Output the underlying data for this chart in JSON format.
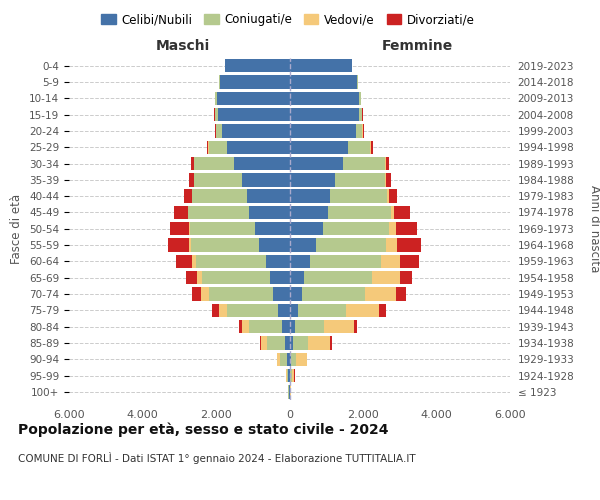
{
  "age_groups": [
    "100+",
    "95-99",
    "90-94",
    "85-89",
    "80-84",
    "75-79",
    "70-74",
    "65-69",
    "60-64",
    "55-59",
    "50-54",
    "45-49",
    "40-44",
    "35-39",
    "30-34",
    "25-29",
    "20-24",
    "15-19",
    "10-14",
    "5-9",
    "0-4"
  ],
  "birth_years": [
    "≤ 1923",
    "1924-1928",
    "1929-1933",
    "1934-1938",
    "1939-1943",
    "1944-1948",
    "1949-1953",
    "1954-1958",
    "1959-1963",
    "1964-1968",
    "1969-1973",
    "1974-1978",
    "1979-1983",
    "1984-1988",
    "1989-1993",
    "1994-1998",
    "1999-2003",
    "2004-2008",
    "2009-2013",
    "2014-2018",
    "2019-2023"
  ],
  "maschi": {
    "celibi": [
      20,
      30,
      60,
      120,
      200,
      300,
      450,
      520,
      650,
      820,
      950,
      1100,
      1150,
      1300,
      1500,
      1700,
      1850,
      1950,
      1980,
      1900,
      1750
    ],
    "coniugati": [
      10,
      50,
      200,
      500,
      900,
      1400,
      1750,
      1850,
      1900,
      1850,
      1750,
      1650,
      1500,
      1300,
      1100,
      500,
      150,
      80,
      40,
      15,
      5
    ],
    "vedovi": [
      5,
      20,
      80,
      150,
      200,
      220,
      200,
      150,
      100,
      60,
      40,
      20,
      10,
      5,
      5,
      5,
      10,
      5,
      3,
      2,
      1
    ],
    "divorziati": [
      2,
      5,
      10,
      30,
      80,
      180,
      250,
      300,
      430,
      580,
      520,
      380,
      200,
      120,
      80,
      50,
      20,
      10,
      5,
      3,
      2
    ]
  },
  "femmine": {
    "nubili": [
      15,
      25,
      50,
      100,
      150,
      230,
      350,
      400,
      550,
      720,
      900,
      1050,
      1100,
      1250,
      1450,
      1600,
      1800,
      1880,
      1900,
      1850,
      1700
    ],
    "coniugate": [
      5,
      30,
      120,
      400,
      800,
      1300,
      1700,
      1850,
      1950,
      1900,
      1800,
      1700,
      1550,
      1350,
      1150,
      600,
      180,
      90,
      45,
      18,
      6
    ],
    "vedove": [
      8,
      80,
      300,
      600,
      800,
      900,
      850,
      750,
      500,
      300,
      200,
      100,
      50,
      25,
      15,
      10,
      15,
      8,
      4,
      3,
      2
    ],
    "divorziate": [
      2,
      5,
      15,
      50,
      100,
      200,
      280,
      330,
      520,
      650,
      580,
      420,
      220,
      130,
      90,
      55,
      25,
      12,
      6,
      4,
      2
    ]
  },
  "colors": {
    "celibi": "#4472a8",
    "coniugati": "#b5c98e",
    "vedovi": "#f5c97a",
    "divorziati": "#cc2222"
  },
  "xlim": 6000,
  "title": "Popolazione per età, sesso e stato civile - 2024",
  "subtitle": "COMUNE DI FORLÌ - Dati ISTAT 1° gennaio 2024 - Elaborazione TUTTITALIA.IT",
  "ylabel_left": "Fasce di età",
  "ylabel_right": "Anni di nascita",
  "xlabel_left": "Maschi",
  "xlabel_right": "Femmine",
  "background_color": "#ffffff"
}
